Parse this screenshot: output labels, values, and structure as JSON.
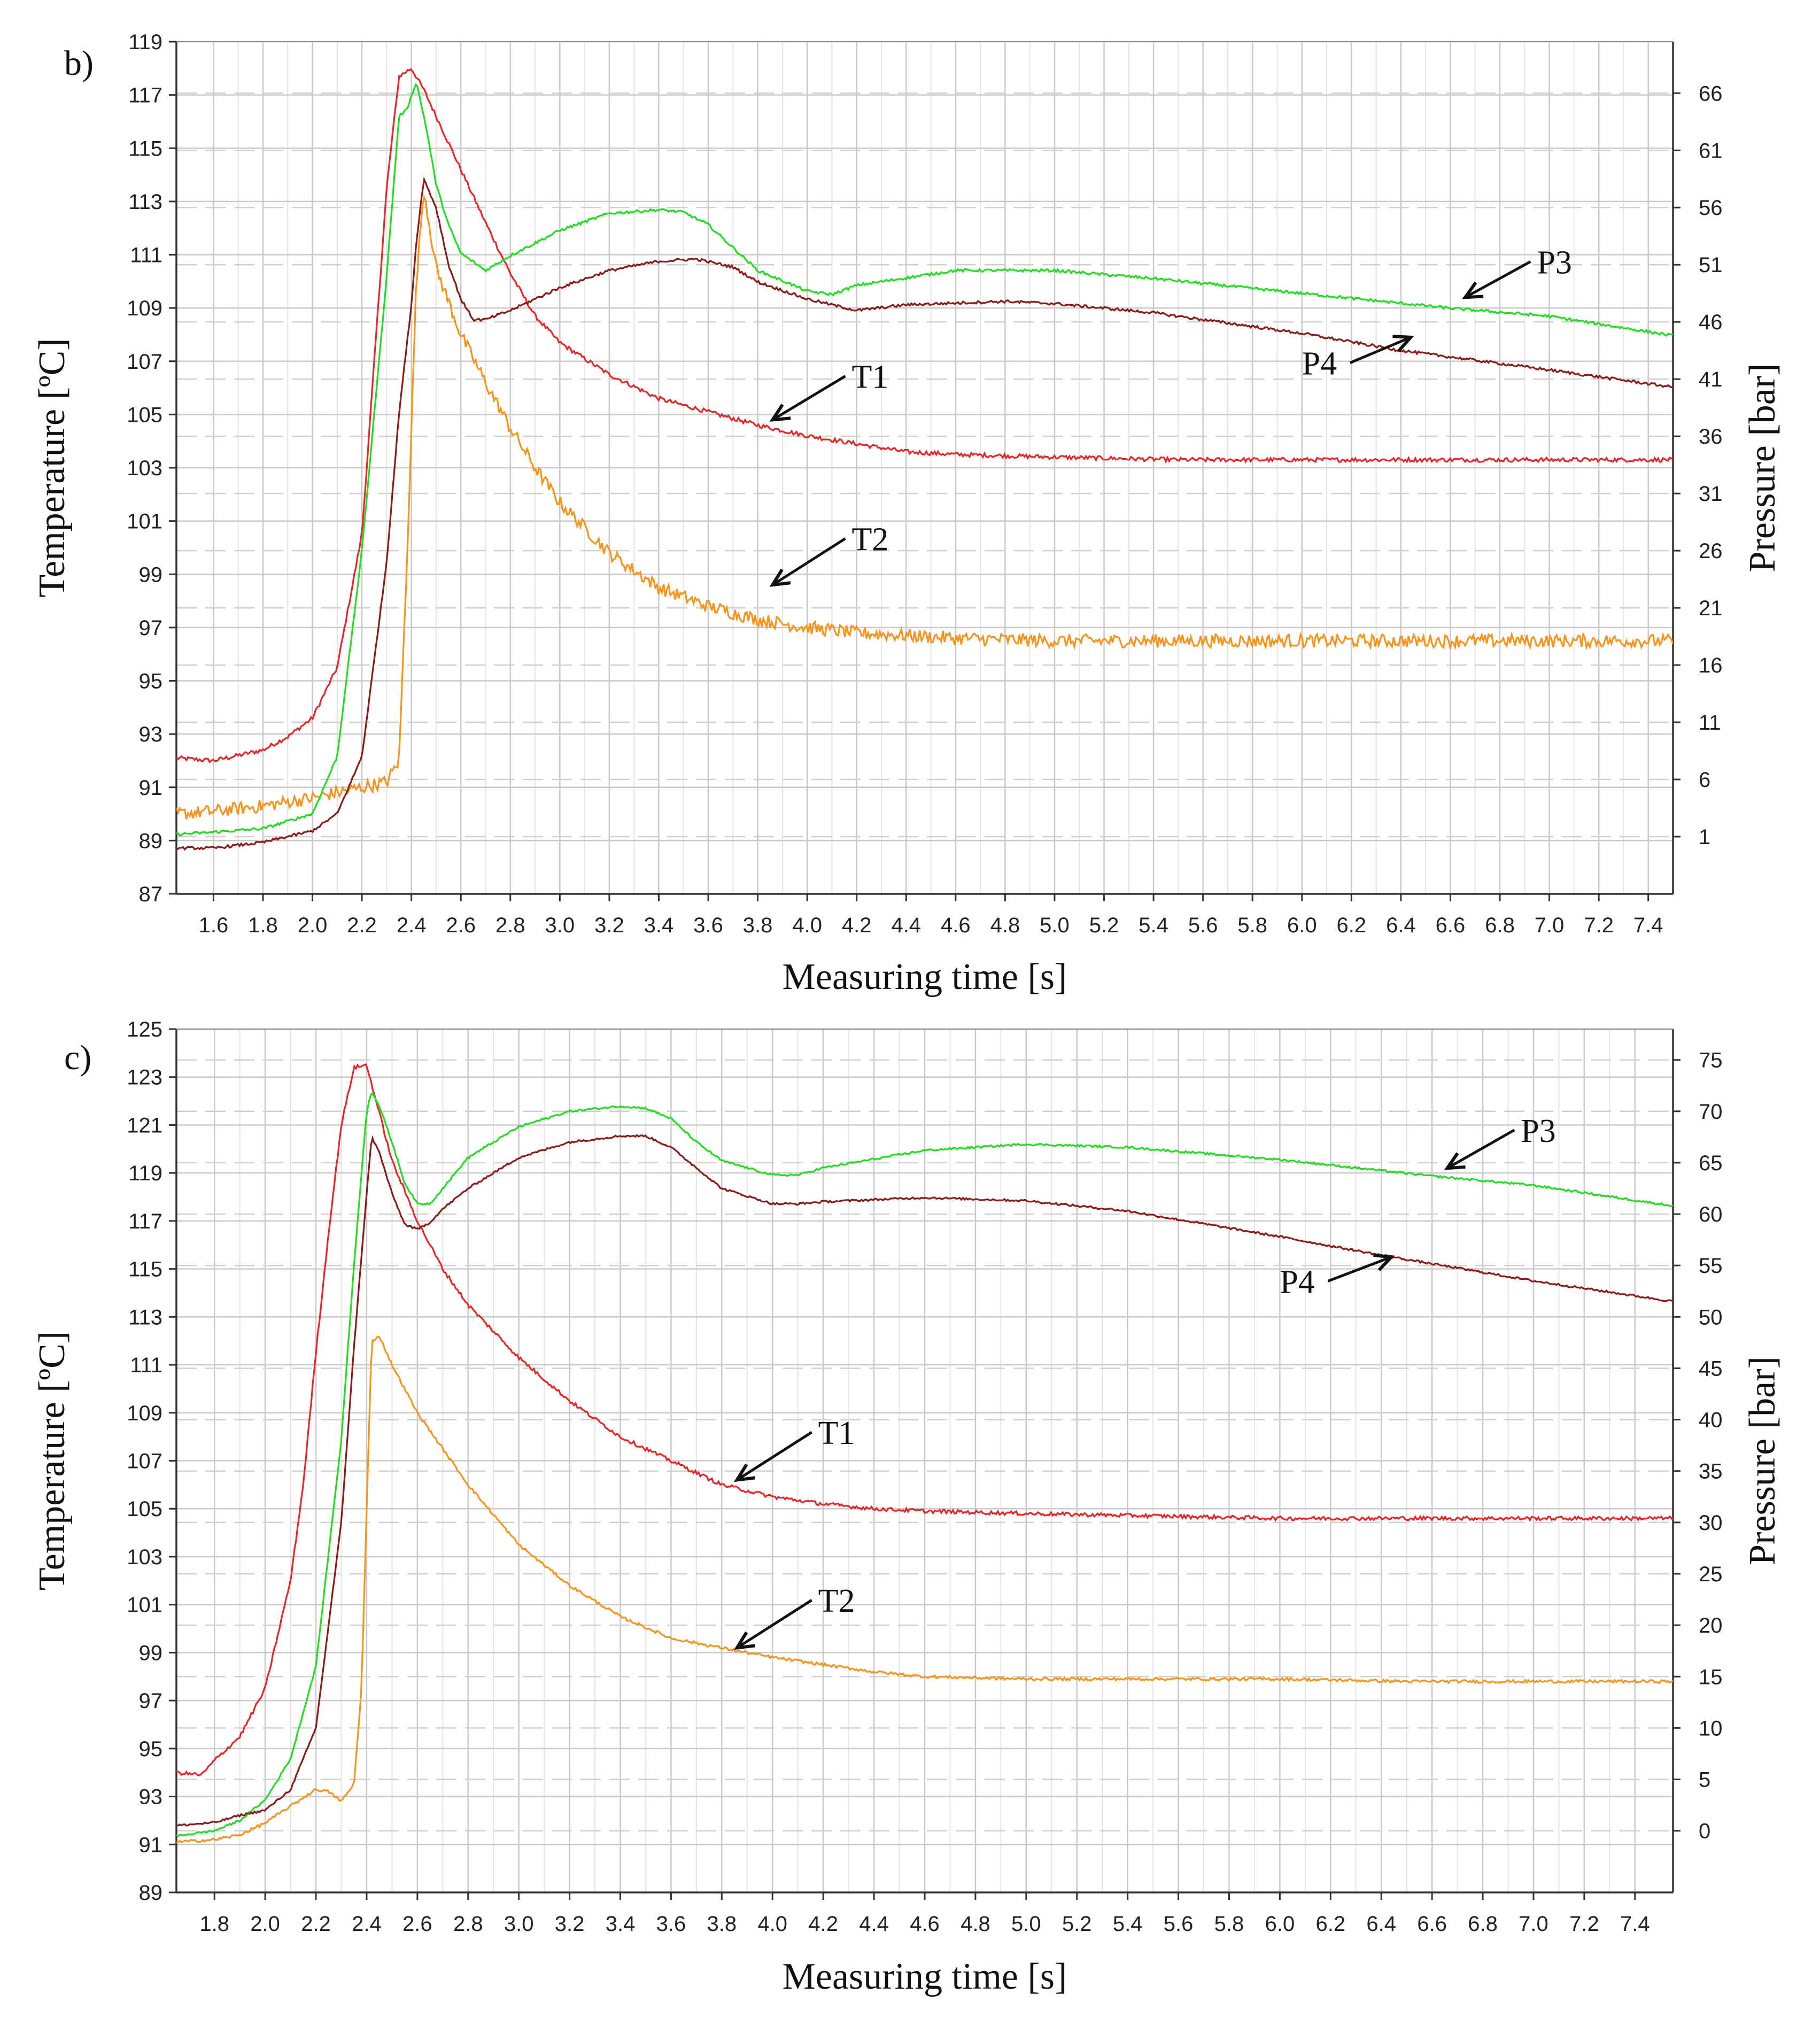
{
  "chart_data": [
    {
      "type": "line",
      "panel_label": "b)",
      "xlabel": "Measuring time [s]",
      "ylabel": "Temperature [ºC]",
      "y2label": "Pressure [bar]",
      "xlim": [
        1.45,
        7.5
      ],
      "ylim": [
        87,
        119
      ],
      "y2lim": [
        -4,
        70.5
      ],
      "xticks": [
        "1.6",
        "1.8",
        "2.0",
        "2.2",
        "2.4",
        "2.6",
        "2.8",
        "3.0",
        "3.2",
        "3.4",
        "3.6",
        "3.8",
        "4.0",
        "4.2",
        "4.4",
        "4.6",
        "4.8",
        "5.0",
        "5.2",
        "5.4",
        "5.6",
        "5.8",
        "6.0",
        "6.2",
        "6.4",
        "6.6",
        "6.8",
        "7.0",
        "7.2",
        "7.4"
      ],
      "yticks": [
        "87",
        "89",
        "91",
        "93",
        "95",
        "97",
        "99",
        "101",
        "103",
        "105",
        "107",
        "109",
        "111",
        "113",
        "115",
        "117",
        "119"
      ],
      "y2ticks": [
        "1",
        "6",
        "11",
        "16",
        "21",
        "26",
        "31",
        "36",
        "41",
        "46",
        "51",
        "56",
        "61",
        "66"
      ],
      "series": [
        {
          "name": "T1",
          "axis": "left",
          "color": "#e8262a",
          "noise": 0.08,
          "x": [
            1.45,
            1.6,
            1.8,
            1.9,
            2.0,
            2.1,
            2.2,
            2.25,
            2.3,
            2.35,
            2.4,
            2.45,
            2.5,
            2.6,
            2.7,
            2.8,
            2.9,
            3.0,
            3.2,
            3.4,
            3.6,
            3.8,
            4.0,
            4.2,
            4.4,
            4.6,
            5.0,
            5.5,
            6.0,
            6.5,
            7.0,
            7.5
          ],
          "y": [
            92.1,
            92.0,
            92.4,
            92.9,
            93.6,
            95.5,
            100.5,
            107.0,
            113.5,
            117.7,
            118.0,
            117.2,
            116.2,
            114.2,
            112.2,
            110.3,
            108.7,
            107.7,
            106.5,
            105.6,
            105.1,
            104.6,
            104.2,
            103.9,
            103.6,
            103.5,
            103.4,
            103.3,
            103.3,
            103.3,
            103.3,
            103.3
          ]
        },
        {
          "name": "T2",
          "axis": "left",
          "color": "#f7941d",
          "noise": 0.25,
          "x": [
            1.45,
            1.6,
            1.8,
            2.0,
            2.1,
            2.2,
            2.3,
            2.35,
            2.38,
            2.42,
            2.45,
            2.5,
            2.6,
            2.7,
            2.8,
            2.9,
            3.0,
            3.2,
            3.4,
            3.6,
            3.8,
            4.0,
            4.2,
            4.4,
            4.6,
            5.0,
            5.5,
            6.0,
            6.5,
            7.0,
            7.5
          ],
          "y": [
            90.0,
            90.1,
            90.3,
            90.6,
            90.8,
            91.0,
            91.2,
            92.0,
            99.0,
            110.0,
            113.5,
            110.5,
            108.0,
            106.2,
            104.5,
            103.0,
            101.7,
            99.8,
            98.5,
            97.8,
            97.3,
            97.0,
            96.8,
            96.7,
            96.6,
            96.5,
            96.5,
            96.5,
            96.5,
            96.5,
            96.5
          ]
        },
        {
          "name": "P3",
          "axis": "right",
          "color": "#22dd22",
          "noise": 0.12,
          "x": [
            1.45,
            1.6,
            1.8,
            2.0,
            2.1,
            2.2,
            2.3,
            2.35,
            2.38,
            2.42,
            2.46,
            2.5,
            2.55,
            2.6,
            2.7,
            2.8,
            3.0,
            3.2,
            3.4,
            3.5,
            3.6,
            3.7,
            3.8,
            4.0,
            4.1,
            4.2,
            4.6,
            5.0,
            5.4,
            6.0,
            6.6,
            7.0,
            7.5
          ],
          "y": [
            1.2,
            1.4,
            1.7,
            3.0,
            8.0,
            26.0,
            50.0,
            64.0,
            64.5,
            67.0,
            63.0,
            58.0,
            54.5,
            52.0,
            50.5,
            51.8,
            54.0,
            55.5,
            55.8,
            55.6,
            54.5,
            52.5,
            50.5,
            48.7,
            48.4,
            49.2,
            50.5,
            50.5,
            49.8,
            48.5,
            47.2,
            46.5,
            44.8
          ]
        },
        {
          "name": "P4",
          "axis": "right",
          "color": "#8b1a1a",
          "noise": 0.12,
          "x": [
            1.45,
            1.6,
            1.8,
            2.0,
            2.1,
            2.2,
            2.3,
            2.35,
            2.4,
            2.42,
            2.45,
            2.5,
            2.55,
            2.6,
            2.65,
            2.7,
            2.8,
            3.0,
            3.2,
            3.4,
            3.55,
            3.7,
            3.8,
            4.0,
            4.2,
            4.4,
            4.8,
            5.0,
            5.4,
            6.0,
            6.4,
            7.0,
            7.5
          ],
          "y": [
            0.0,
            0.0,
            0.5,
            1.5,
            3.0,
            8.0,
            25.0,
            38.0,
            47.5,
            53.0,
            58.5,
            56.0,
            51.0,
            48.0,
            46.2,
            46.2,
            47.0,
            49.0,
            50.5,
            51.3,
            51.5,
            50.8,
            49.5,
            48.0,
            47.0,
            47.5,
            47.8,
            47.6,
            46.8,
            45.0,
            43.5,
            41.8,
            40.3
          ]
        }
      ],
      "annotations": [
        {
          "text": "P3",
          "x": 6.95,
          "y_axis": "left",
          "y": 110.3,
          "tip_x": 6.66,
          "tip_y": 109.4
        },
        {
          "text": "P4",
          "x": 6.0,
          "y_axis": "left",
          "y": 106.5,
          "tip_x": 6.44,
          "tip_y": 107.9
        },
        {
          "text": "T1",
          "x": 4.18,
          "y_axis": "left",
          "y": 106.0,
          "tip_x": 3.86,
          "tip_y": 104.8
        },
        {
          "text": "T2",
          "x": 4.18,
          "y_axis": "left",
          "y": 99.9,
          "tip_x": 3.86,
          "tip_y": 98.6
        }
      ]
    },
    {
      "type": "line",
      "panel_label": "c)",
      "xlabel": "Measuring time [s]",
      "ylabel": "Temperature [ºC]",
      "y2label": "Pressure [bar]",
      "xlim": [
        1.65,
        7.55
      ],
      "ylim": [
        89,
        125
      ],
      "y2lim": [
        -6,
        78
      ],
      "xticks": [
        "1.8",
        "2.0",
        "2.2",
        "2.4",
        "2.6",
        "2.8",
        "3.0",
        "3.2",
        "3.4",
        "3.6",
        "3.8",
        "4.0",
        "4.2",
        "4.4",
        "4.6",
        "4.8",
        "5.0",
        "5.2",
        "5.4",
        "5.6",
        "5.8",
        "6.0",
        "6.2",
        "6.4",
        "6.6",
        "6.8",
        "7.0",
        "7.2",
        "7.4"
      ],
      "yticks": [
        "89",
        "91",
        "93",
        "95",
        "97",
        "99",
        "101",
        "103",
        "105",
        "107",
        "109",
        "111",
        "113",
        "115",
        "117",
        "119",
        "121",
        "123",
        "125"
      ],
      "y2ticks": [
        "0",
        "5",
        "10",
        "15",
        "20",
        "25",
        "30",
        "35",
        "40",
        "45",
        "50",
        "55",
        "60",
        "65",
        "70",
        "75"
      ],
      "series": [
        {
          "name": "T1",
          "axis": "left",
          "color": "#e8262a",
          "noise": 0.08,
          "x": [
            1.65,
            1.75,
            1.8,
            1.9,
            2.0,
            2.1,
            2.15,
            2.2,
            2.25,
            2.3,
            2.35,
            2.4,
            2.45,
            2.5,
            2.6,
            2.7,
            2.8,
            3.0,
            3.2,
            3.4,
            3.6,
            3.8,
            4.0,
            4.2,
            4.4,
            4.6,
            5.0,
            5.5,
            6.0,
            6.5,
            7.0,
            7.55
          ],
          "y": [
            94.0,
            93.9,
            94.5,
            95.5,
            97.5,
            102.0,
            106.0,
            111.5,
            116.5,
            121.0,
            123.4,
            123.5,
            121.5,
            119.5,
            117.0,
            115.0,
            113.5,
            111.3,
            109.5,
            108.0,
            107.0,
            106.0,
            105.5,
            105.2,
            105.0,
            104.9,
            104.8,
            104.7,
            104.6,
            104.6,
            104.6,
            104.6
          ]
        },
        {
          "name": "T2",
          "axis": "left",
          "color": "#f7941d",
          "noise": 0.06,
          "x": [
            1.65,
            1.8,
            1.9,
            2.0,
            2.1,
            2.2,
            2.25,
            2.3,
            2.35,
            2.38,
            2.4,
            2.42,
            2.45,
            2.5,
            2.6,
            2.8,
            3.0,
            3.2,
            3.4,
            3.6,
            3.8,
            4.0,
            4.2,
            4.4,
            4.6,
            5.0,
            5.5,
            6.0,
            6.5,
            7.0,
            7.55
          ],
          "y": [
            91.1,
            91.2,
            91.4,
            91.9,
            92.6,
            93.3,
            93.2,
            92.8,
            93.5,
            97.5,
            105.0,
            112.0,
            112.2,
            111.0,
            109.0,
            106.0,
            103.5,
            101.8,
            100.5,
            99.6,
            99.2,
            98.8,
            98.5,
            98.2,
            98.0,
            97.9,
            97.9,
            97.9,
            97.8,
            97.8,
            97.8
          ]
        },
        {
          "name": "P3",
          "axis": "right",
          "color": "#22dd22",
          "noise": 0.1,
          "x": [
            1.65,
            1.8,
            1.9,
            2.0,
            2.1,
            2.2,
            2.3,
            2.35,
            2.4,
            2.42,
            2.45,
            2.5,
            2.55,
            2.6,
            2.65,
            2.7,
            2.8,
            3.0,
            3.2,
            3.4,
            3.5,
            3.6,
            3.7,
            3.8,
            4.0,
            4.1,
            4.2,
            4.6,
            5.0,
            5.4,
            6.0,
            6.6,
            7.0,
            7.55
          ],
          "y": [
            -0.5,
            0.0,
            1.0,
            3.0,
            7.0,
            16.0,
            38.0,
            55.0,
            70.0,
            72.0,
            70.5,
            67.0,
            63.0,
            61.0,
            61.0,
            62.5,
            65.5,
            68.5,
            70.0,
            70.5,
            70.3,
            69.3,
            67.0,
            65.2,
            63.8,
            63.8,
            64.5,
            66.2,
            66.8,
            66.5,
            65.3,
            63.7,
            62.8,
            60.8
          ]
        },
        {
          "name": "P4",
          "axis": "right",
          "color": "#8b1a1a",
          "noise": 0.1,
          "x": [
            1.65,
            1.8,
            1.9,
            2.0,
            2.1,
            2.2,
            2.3,
            2.35,
            2.4,
            2.42,
            2.45,
            2.5,
            2.55,
            2.6,
            2.65,
            2.7,
            2.8,
            3.0,
            3.2,
            3.4,
            3.5,
            3.6,
            3.7,
            3.8,
            4.0,
            4.1,
            4.2,
            4.6,
            5.0,
            5.4,
            6.0,
            6.4,
            7.0,
            7.55
          ],
          "y": [
            0.5,
            0.8,
            1.5,
            2.0,
            4.0,
            10.0,
            30.0,
            47.0,
            62.0,
            67.5,
            66.0,
            62.0,
            59.0,
            58.5,
            59.2,
            60.5,
            62.5,
            65.5,
            67.0,
            67.6,
            67.6,
            66.5,
            64.5,
            62.5,
            61.0,
            61.0,
            61.2,
            61.6,
            61.3,
            60.3,
            57.8,
            56.0,
            53.5,
            51.5
          ]
        }
      ],
      "annotations": [
        {
          "text": "P3",
          "x": 6.95,
          "y_axis": "left",
          "y": 120.3,
          "tip_x": 6.66,
          "tip_y": 119.2
        },
        {
          "text": "P4",
          "x": 6.0,
          "y_axis": "left",
          "y": 114.0,
          "tip_x": 6.44,
          "tip_y": 115.5
        },
        {
          "text": "T1",
          "x": 4.18,
          "y_axis": "left",
          "y": 107.7,
          "tip_x": 3.86,
          "tip_y": 106.2
        },
        {
          "text": "T2",
          "x": 4.18,
          "y_axis": "left",
          "y": 100.7,
          "tip_x": 3.86,
          "tip_y": 99.2
        }
      ]
    }
  ]
}
